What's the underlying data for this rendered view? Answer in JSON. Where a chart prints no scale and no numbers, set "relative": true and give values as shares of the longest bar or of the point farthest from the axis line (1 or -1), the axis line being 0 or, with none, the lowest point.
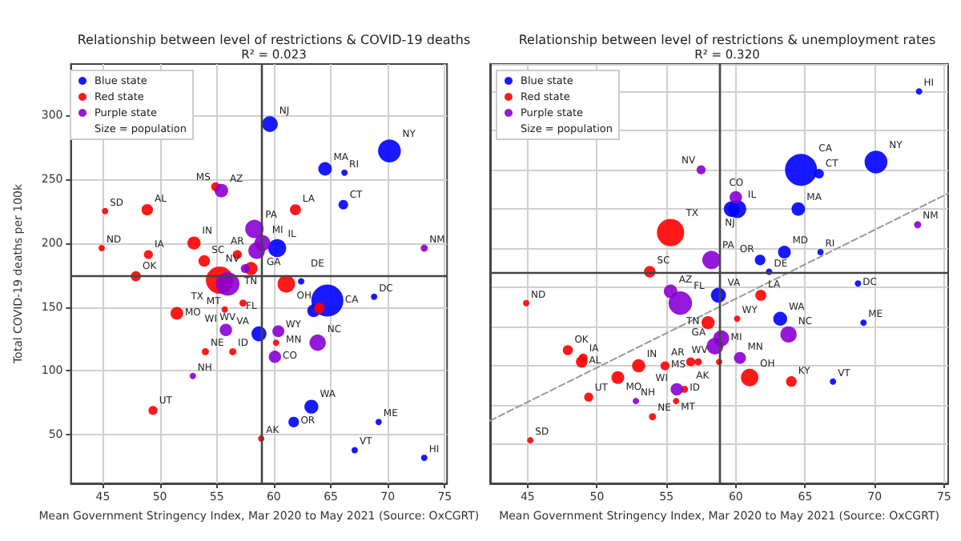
{
  "chart_data": [
    {
      "type": "bubble",
      "title": "Relationship between level of restrictions & COVID-19 deaths",
      "subtitle": "R² = 0.023",
      "xlabel": "Mean Government Stringency Index, Mar 2020 to May 2021 (Source: OxCGRT)",
      "ylabel": "Total COVID-19 deaths per 100k",
      "xlim": [
        42.2,
        75.2
      ],
      "xticks": [
        45,
        50,
        55,
        60,
        65,
        70,
        75
      ],
      "ylim": [
        12,
        340
      ],
      "yticks": [
        50,
        100,
        150,
        200,
        250,
        300
      ],
      "grid": true,
      "legend": "top left",
      "series": [
        {
          "name": "Blue state",
          "color": "#0000ff",
          "x": [
            59.66,
            70.15,
            64.5,
            66.2,
            66.1,
            60.3,
            64.7,
            62.4,
            68.8,
            63.5,
            58.7,
            63.3,
            61.75,
            69.2,
            67.1,
            73.2
          ],
          "values": [
            293,
            272,
            258,
            255,
            230,
            196,
            155,
            170,
            158,
            147,
            129,
            72,
            60,
            60,
            38,
            32
          ],
          "sizes": [
            0.24,
            0.51,
            0.18,
            0.04,
            0.09,
            0.32,
            1,
            0.04,
            0.04,
            0.16,
            0.22,
            0.19,
            0.11,
            0.04,
            0.04,
            0.04
          ]
        },
        {
          "name": "Red state",
          "color": "#ff0000",
          "x": [
            61.9,
            45.2,
            48.9,
            54.9,
            44.9,
            49.0,
            53.0,
            53.9,
            56.8,
            47.9,
            55.25,
            58.0,
            64.0,
            61.1,
            51.5,
            55.7,
            57.3,
            60.2,
            54.0,
            56.4,
            49.4,
            58.9
          ],
          "values": [
            226,
            225,
            226,
            244,
            196,
            191,
            200,
            186,
            191,
            174,
            171,
            180,
            149,
            168,
            145,
            148,
            153,
            122,
            115,
            115,
            69,
            47
          ],
          "sizes": [
            0.12,
            0.04,
            0.13,
            0.08,
            0.04,
            0.08,
            0.17,
            0.13,
            0.08,
            0.1,
            0.73,
            0.17,
            0.11,
            0.3,
            0.16,
            0.04,
            0.05,
            0.04,
            0.05,
            0.05,
            0.08,
            0.04
          ]
        },
        {
          "name": "Purple state",
          "color": "#8a00d4",
          "x": [
            55.4,
            58.3,
            59.0,
            58.5,
            57.5,
            55.96,
            73.2,
            55.8,
            60.4,
            63.85,
            60.1,
            52.9
          ],
          "values": [
            241,
            211,
            200,
            194,
            180,
            168,
            196,
            132,
            131,
            122,
            111,
            96
          ],
          "sizes": [
            0.18,
            0.33,
            0.25,
            0.27,
            0.08,
            0.54,
            0.05,
            0.15,
            0.14,
            0.26,
            0.15,
            0.04
          ]
        },
        {
          "name": "Size = population",
          "color": "#000000"
        }
      ],
      "ref_lines": [
        {
          "axis": "x",
          "value": 58.85
        },
        {
          "axis": "y",
          "value": 175
        }
      ],
      "annotations": [
        {
          "text": "NJ",
          "x": 59.66,
          "y": 293
        },
        {
          "text": "NY",
          "x": 70.15,
          "y": 272
        },
        {
          "text": "MA",
          "x": 64.5,
          "y": 258
        },
        {
          "text": "RI",
          "x": 66.2,
          "y": 255
        },
        {
          "text": "CT",
          "x": 66.1,
          "y": 230
        },
        {
          "text": "IL",
          "x": 60.3,
          "y": 196
        },
        {
          "text": "CA",
          "x": 64.7,
          "y": 155
        },
        {
          "text": "DE",
          "x": 62.4,
          "y": 170
        },
        {
          "text": "DC",
          "x": 68.8,
          "y": 158
        },
        {
          "text": "VA",
          "x": 58.7,
          "y": 129
        },
        {
          "text": "WA",
          "x": 63.3,
          "y": 72
        },
        {
          "text": "OR",
          "x": 61.75,
          "y": 60
        },
        {
          "text": "ME",
          "x": 69.2,
          "y": 60
        },
        {
          "text": "VT",
          "x": 67.1,
          "y": 38
        },
        {
          "text": "HI",
          "x": 73.2,
          "y": 32
        },
        {
          "text": "LA",
          "x": 61.9,
          "y": 226
        },
        {
          "text": "SD",
          "x": 45.2,
          "y": 225
        },
        {
          "text": "AL",
          "x": 48.9,
          "y": 226
        },
        {
          "text": "MS",
          "x": 54.9,
          "y": 244
        },
        {
          "text": "ND",
          "x": 44.9,
          "y": 196
        },
        {
          "text": "IA",
          "x": 49.0,
          "y": 191
        },
        {
          "text": "IN",
          "x": 53.0,
          "y": 200
        },
        {
          "text": "SC",
          "x": 53.9,
          "y": 186
        },
        {
          "text": "AR",
          "x": 56.8,
          "y": 191
        },
        {
          "text": "OK",
          "x": 47.9,
          "y": 174
        },
        {
          "text": "TX",
          "x": 55.25,
          "y": 171
        },
        {
          "text": "TN",
          "x": 58.0,
          "y": 180
        },
        {
          "text": "OH",
          "x": 61.1,
          "y": 168
        },
        {
          "text": "MO",
          "x": 51.5,
          "y": 145
        },
        {
          "text": "MT",
          "x": 55.7,
          "y": 148
        },
        {
          "text": "WV",
          "x": 57.3,
          "y": 153
        },
        {
          "text": "WY",
          "x": 60.2,
          "y": 122
        },
        {
          "text": "NE",
          "x": 54.0,
          "y": 115
        },
        {
          "text": "ID",
          "x": 56.4,
          "y": 115
        },
        {
          "text": "UT",
          "x": 49.4,
          "y": 69
        },
        {
          "text": "AK",
          "x": 58.9,
          "y": 47
        },
        {
          "text": "AZ",
          "x": 55.4,
          "y": 241
        },
        {
          "text": "PA",
          "x": 58.3,
          "y": 211
        },
        {
          "text": "MI",
          "x": 59.0,
          "y": 200
        },
        {
          "text": "GA",
          "x": 58.5,
          "y": 194
        },
        {
          "text": "NV",
          "x": 57.5,
          "y": 180
        },
        {
          "text": "FL",
          "x": 55.96,
          "y": 168
        },
        {
          "text": "NM",
          "x": 73.2,
          "y": 196
        },
        {
          "text": "WI",
          "x": 55.8,
          "y": 132
        },
        {
          "text": "MN",
          "x": 60.4,
          "y": 131
        },
        {
          "text": "NC",
          "x": 63.85,
          "y": 122
        },
        {
          "text": "CO",
          "x": 60.1,
          "y": 111
        },
        {
          "text": "NH",
          "x": 52.9,
          "y": 96
        }
      ]
    },
    {
      "type": "bubble",
      "title": "Relationship between level of restrictions & unemployment rates",
      "subtitle": "R² = 0.320",
      "xlabel": "Mean Government Stringency Index, Mar 2020 to May 2021 (Source: OxCGRT)",
      "xlim": [
        42.3,
        75.3
      ],
      "xticks": [
        45,
        50,
        55,
        60,
        65,
        70,
        75
      ],
      "relative": true,
      "tick_labels": "x",
      "grid": true,
      "legend": "top left",
      "series": [
        {
          "name": "Blue state",
          "color": "#0000ff",
          "x": [
            73.2,
            64.7,
            66.0,
            70.1,
            60.1,
            59.7,
            64.5,
            63.5,
            66.1,
            61.75,
            62.4,
            58.75,
            68.8,
            63.2,
            69.2,
            67.0
          ],
          "values": [
            1,
            0.8,
            0.79,
            0.82,
            0.7,
            0.7,
            0.7,
            0.59,
            0.59,
            0.57,
            0.54,
            0.48,
            0.51,
            0.42,
            0.41,
            0.26
          ],
          "sizes": [
            0.04,
            1,
            0.09,
            0.51,
            0.32,
            0.24,
            0.18,
            0.16,
            0.04,
            0.11,
            0.04,
            0.22,
            0.04,
            0.19,
            0.04,
            0.04
          ]
        },
        {
          "name": "Red state",
          "color": "#ff0000",
          "x": [
            55.3,
            53.8,
            61.8,
            44.9,
            60.1,
            58.0,
            47.9,
            49.0,
            48.9,
            56.75,
            57.3,
            58.8,
            54.9,
            53.0,
            51.5,
            61.0,
            64.0,
            56.3,
            49.4,
            55.7,
            54.0,
            45.2
          ],
          "values": [
            0.64,
            0.54,
            0.48,
            0.46,
            0.42,
            0.41,
            0.34,
            0.32,
            0.31,
            0.31,
            0.31,
            0.31,
            0.3,
            0.3,
            0.27,
            0.27,
            0.26,
            0.24,
            0.22,
            0.21,
            0.17,
            0.11
          ],
          "sizes": [
            0.73,
            0.13,
            0.12,
            0.04,
            0.04,
            0.17,
            0.1,
            0.08,
            0.13,
            0.08,
            0.05,
            0.04,
            0.08,
            0.17,
            0.16,
            0.3,
            0.11,
            0.05,
            0.08,
            0.04,
            0.05,
            0.04
          ]
        },
        {
          "name": "Purple state",
          "color": "#8a00d4",
          "x": [
            57.5,
            60.0,
            73.1,
            58.25,
            55.3,
            56.0,
            63.8,
            58.95,
            58.5,
            60.3,
            55.75,
            52.8
          ],
          "values": [
            0.8,
            0.73,
            0.66,
            0.57,
            0.49,
            0.46,
            0.38,
            0.37,
            0.35,
            0.32,
            0.24,
            0.21
          ],
          "sizes": [
            0.08,
            0.15,
            0.05,
            0.33,
            0.18,
            0.54,
            0.26,
            0.25,
            0.27,
            0.14,
            0.15,
            0.04
          ]
        },
        {
          "name": "Size = population",
          "color": "#000000"
        },
        {
          "type": "line",
          "color": "#999999",
          "line_style": "dashed",
          "x": [
            42.3,
            75.3
          ],
          "values": [
            0.16,
            0.74
          ]
        }
      ],
      "ref_lines": [
        {
          "axis": "x",
          "value": 58.8
        },
        {
          "axis": "y",
          "value": 0.54
        }
      ],
      "annotations": [
        {
          "text": "HI",
          "x": 73.2,
          "y": 1
        },
        {
          "text": "CA",
          "x": 64.7,
          "y": 0.8
        },
        {
          "text": "CT",
          "x": 66.0,
          "y": 0.79
        },
        {
          "text": "NY",
          "x": 70.1,
          "y": 0.82
        },
        {
          "text": "IL",
          "x": 60.1,
          "y": 0.7
        },
        {
          "text": "NJ",
          "x": 59.7,
          "y": 0.7
        },
        {
          "text": "MA",
          "x": 64.5,
          "y": 0.7
        },
        {
          "text": "MD",
          "x": 63.5,
          "y": 0.59
        },
        {
          "text": "RI",
          "x": 66.1,
          "y": 0.59
        },
        {
          "text": "OR",
          "x": 61.75,
          "y": 0.57
        },
        {
          "text": "DE",
          "x": 62.4,
          "y": 0.54
        },
        {
          "text": "VA",
          "x": 58.75,
          "y": 0.48
        },
        {
          "text": "DC",
          "x": 68.8,
          "y": 0.51
        },
        {
          "text": "WA",
          "x": 63.2,
          "y": 0.42
        },
        {
          "text": "ME",
          "x": 69.2,
          "y": 0.41
        },
        {
          "text": "VT",
          "x": 67.0,
          "y": 0.26
        },
        {
          "text": "TX",
          "x": 55.3,
          "y": 0.64
        },
        {
          "text": "SC",
          "x": 53.8,
          "y": 0.54
        },
        {
          "text": "LA",
          "x": 61.8,
          "y": 0.48
        },
        {
          "text": "ND",
          "x": 44.9,
          "y": 0.46
        },
        {
          "text": "WY",
          "x": 60.1,
          "y": 0.42
        },
        {
          "text": "TN",
          "x": 58.0,
          "y": 0.41
        },
        {
          "text": "OK",
          "x": 47.9,
          "y": 0.34
        },
        {
          "text": "IA",
          "x": 49.0,
          "y": 0.32
        },
        {
          "text": "AL",
          "x": 48.9,
          "y": 0.31
        },
        {
          "text": "AR",
          "x": 56.75,
          "y": 0.31
        },
        {
          "text": "WV",
          "x": 57.3,
          "y": 0.31
        },
        {
          "text": "AK",
          "x": 58.8,
          "y": 0.31
        },
        {
          "text": "MS",
          "x": 54.9,
          "y": 0.3
        },
        {
          "text": "IN",
          "x": 53.0,
          "y": 0.3
        },
        {
          "text": "MO",
          "x": 51.5,
          "y": 0.27
        },
        {
          "text": "OH",
          "x": 61.0,
          "y": 0.27
        },
        {
          "text": "KY",
          "x": 64.0,
          "y": 0.26
        },
        {
          "text": "ID",
          "x": 56.3,
          "y": 0.24
        },
        {
          "text": "UT",
          "x": 49.4,
          "y": 0.22
        },
        {
          "text": "MT",
          "x": 55.7,
          "y": 0.21
        },
        {
          "text": "NE",
          "x": 54.0,
          "y": 0.17
        },
        {
          "text": "SD",
          "x": 45.2,
          "y": 0.11
        },
        {
          "text": "NV",
          "x": 57.5,
          "y": 0.8
        },
        {
          "text": "CO",
          "x": 60.0,
          "y": 0.73
        },
        {
          "text": "NM",
          "x": 73.1,
          "y": 0.66
        },
        {
          "text": "PA",
          "x": 58.25,
          "y": 0.57
        },
        {
          "text": "AZ",
          "x": 55.3,
          "y": 0.49
        },
        {
          "text": "FL",
          "x": 56.0,
          "y": 0.46
        },
        {
          "text": "NC",
          "x": 63.8,
          "y": 0.38
        },
        {
          "text": "MI",
          "x": 58.95,
          "y": 0.37
        },
        {
          "text": "GA",
          "x": 58.5,
          "y": 0.35
        },
        {
          "text": "MN",
          "x": 60.3,
          "y": 0.32
        },
        {
          "text": "WI",
          "x": 55.75,
          "y": 0.24
        },
        {
          "text": "NH",
          "x": 52.8,
          "y": 0.21
        }
      ]
    }
  ]
}
